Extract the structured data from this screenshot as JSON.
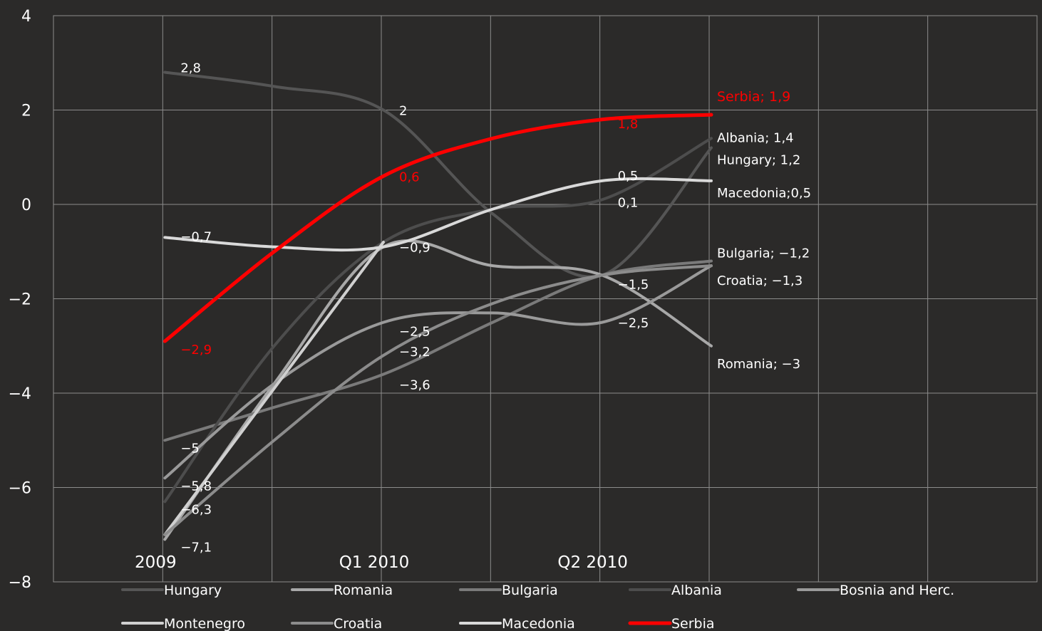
{
  "chart_data": {
    "type": "line",
    "categories": [
      "2009",
      "",
      "Q1 2010",
      "",
      "Q2 2010",
      "",
      "",
      ""
    ],
    "x_tick_labels": [
      "2009",
      "Q1 2010",
      "Q2 2010"
    ],
    "ylim": [
      -8,
      4
    ],
    "y_ticks": [
      4,
      2,
      0,
      -2,
      -4,
      -6,
      -8
    ],
    "y_tick_labels": [
      "4",
      "2",
      "0",
      "−2",
      "−4",
      "−6",
      "−8"
    ],
    "grid": true,
    "legend_position": "bottom",
    "colors": {
      "background": "#2b2a29",
      "grid": "#8c8c8c",
      "text": "#ffffff",
      "serbia": "#ff0000"
    },
    "series": [
      {
        "name": "Hungary",
        "color": "#555555",
        "x": [
          2,
          4,
          6,
          8,
          10,
          12
        ],
        "values": [
          2.8,
          2.5,
          2.0,
          -0.2,
          -1.5,
          1.2
        ],
        "labels": [
          {
            "i": 0,
            "text": "2,8"
          },
          {
            "i": 2,
            "text": "2"
          },
          {
            "i": 5,
            "text": "Hungary; 1,2"
          }
        ]
      },
      {
        "name": "Romania",
        "color": "#a8a8a8",
        "x": [
          2,
          4,
          6,
          8,
          10,
          12
        ],
        "values": [
          -7.1,
          -3.8,
          -0.9,
          -1.3,
          -1.5,
          -3.0
        ],
        "labels": [
          {
            "i": 0,
            "text": "−7,1"
          },
          {
            "i": 5,
            "text": "Romania; −3"
          }
        ]
      },
      {
        "name": "Bulgaria",
        "color": "#7a7a7a",
        "x": [
          2,
          4,
          6,
          8,
          10,
          12
        ],
        "values": [
          -5.0,
          -4.3,
          -3.6,
          -2.5,
          -1.5,
          -1.2
        ],
        "labels": [
          {
            "i": 0,
            "text": "−5"
          },
          {
            "i": 2,
            "text": "−3,6"
          },
          {
            "i": 5,
            "text": "Bulgaria; −1,2"
          }
        ]
      },
      {
        "name": "Albania",
        "color": "#4d4d4d",
        "x": [
          2,
          4,
          6,
          8,
          10,
          12
        ],
        "values": [
          -6.3,
          -3.0,
          -0.8,
          -0.1,
          0.1,
          1.4
        ],
        "labels": [
          {
            "i": 0,
            "text": "−6,3"
          },
          {
            "i": 4,
            "text": "0,1"
          },
          {
            "i": 5,
            "text": "Albania; 1,4"
          }
        ]
      },
      {
        "name": "Bosnia and Herc.",
        "color": "#9a9a9a",
        "x": [
          2,
          4,
          6,
          8,
          10,
          12
        ],
        "values": [
          -5.8,
          -3.8,
          -2.5,
          -2.3,
          -2.5,
          -1.3
        ],
        "labels": [
          {
            "i": 0,
            "text": "−5,8"
          },
          {
            "i": 2,
            "text": "−2,5"
          },
          {
            "i": 4,
            "text": "−2,5"
          }
        ]
      },
      {
        "name": "Montenegro",
        "color": "#d0d0d0",
        "x": [
          2,
          6
        ],
        "values": [
          -7.0,
          -0.8
        ],
        "labels": []
      },
      {
        "name": "Croatia",
        "color": "#8c8c8c",
        "x": [
          2,
          4,
          6,
          8,
          10,
          12
        ],
        "values": [
          -7.0,
          -5.0,
          -3.2,
          -2.1,
          -1.5,
          -1.3
        ],
        "labels": [
          {
            "i": 2,
            "text": "−3,2"
          },
          {
            "i": 4,
            "text": "−1,5"
          },
          {
            "i": 5,
            "text": "Croatia; −1,3"
          }
        ]
      },
      {
        "name": "Macedonia",
        "color": "#d9d9d9",
        "x": [
          2,
          4,
          6,
          8,
          10,
          12
        ],
        "values": [
          -0.7,
          -0.9,
          -0.9,
          -0.1,
          0.5,
          0.5
        ],
        "labels": [
          {
            "i": 0,
            "text": "−0,7"
          },
          {
            "i": 2,
            "text": "−0,9"
          },
          {
            "i": 4,
            "text": "0,5"
          },
          {
            "i": 5,
            "text": "Macedonia;0,5"
          }
        ]
      },
      {
        "name": "Serbia",
        "color": "#ff0000",
        "x": [
          2,
          4,
          6,
          8,
          10,
          12
        ],
        "values": [
          -2.9,
          -1.0,
          0.6,
          1.4,
          1.8,
          1.9
        ],
        "labels": [
          {
            "i": 0,
            "text": "−2,9"
          },
          {
            "i": 2,
            "text": "0,6"
          },
          {
            "i": 4,
            "text": "1,8"
          },
          {
            "i": 5,
            "text": "Serbia; 1,9"
          }
        ]
      }
    ]
  }
}
